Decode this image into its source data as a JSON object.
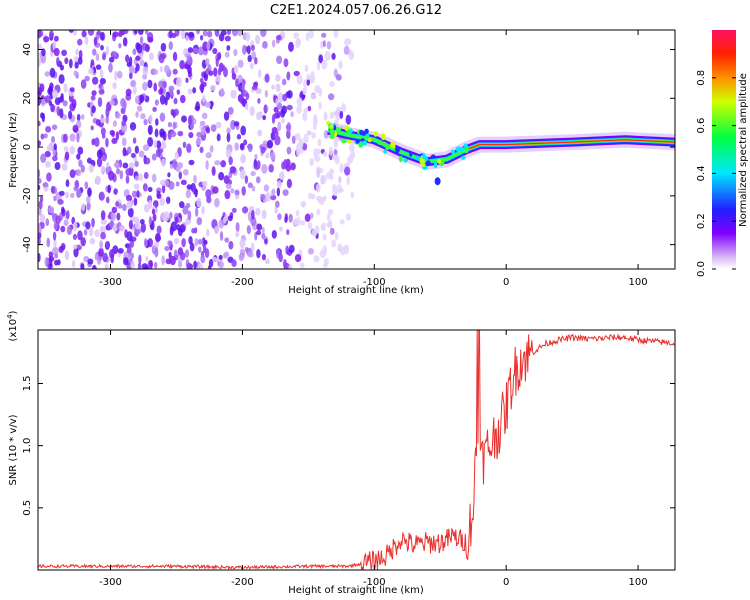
{
  "figure_title": "C2E1.2024.057.06.26.G12",
  "chart_data": [
    {
      "type": "heatmap",
      "panel": "spectrogram",
      "title": "",
      "xlabel": "Height of straight line (km)",
      "ylabel": "Frequency (Hz)",
      "xlim": [
        -355,
        128
      ],
      "ylim": [
        -50,
        48
      ],
      "x_ticks": [
        -300,
        -200,
        -100,
        0,
        100
      ],
      "y_ticks": [
        -40,
        -20,
        0,
        20,
        40
      ],
      "colorbar": {
        "label": "Normalized spectral amplitude",
        "range": [
          0.0,
          1.0
        ],
        "ticks": [
          0.0,
          0.2,
          0.4,
          0.6,
          0.8
        ],
        "tick_labels": [
          "0.0",
          "0.2",
          "0.4",
          "0.6",
          "0.8"
        ],
        "colormap": "rainbow-white"
      },
      "features": {
        "noise_region_x": [
          -355,
          -125
        ],
        "noise_amplitude": 0.15,
        "signal_trace": [
          {
            "x": -135,
            "y": 7
          },
          {
            "x": -120,
            "y": 5
          },
          {
            "x": -100,
            "y": 3
          },
          {
            "x": -80,
            "y": -2
          },
          {
            "x": -60,
            "y": -6
          },
          {
            "x": -45,
            "y": -5
          },
          {
            "x": -30,
            "y": -1
          },
          {
            "x": -20,
            "y": 1
          },
          {
            "x": 0,
            "y": 1
          },
          {
            "x": 50,
            "y": 2
          },
          {
            "x": 90,
            "y": 3
          },
          {
            "x": 128,
            "y": 2
          }
        ],
        "signal_amplitude_max": 0.95
      }
    },
    {
      "type": "line",
      "panel": "snr",
      "title": "",
      "xlabel": "Height of straight line (km)",
      "ylabel": "SNR (10 * v/v)",
      "y_scale_label": "(x10",
      "y_scale_exponent": "4",
      "y_scale_close": ")",
      "xlim": [
        -355,
        128
      ],
      "ylim": [
        0,
        1.93
      ],
      "x_ticks": [
        -300,
        -200,
        -100,
        0,
        100
      ],
      "y_ticks": [
        0.5,
        1.0,
        1.5
      ],
      "y_tick_labels": [
        "0.5",
        "1.0",
        "1.5"
      ],
      "series": [
        {
          "color": "#e8302c",
          "x": [
            -355,
            -300,
            -250,
            -200,
            -150,
            -120,
            -100,
            -90,
            -80,
            -70,
            -60,
            -50,
            -40,
            -30,
            -25,
            -22,
            -20,
            -15,
            -10,
            -5,
            0,
            5,
            10,
            20,
            30,
            40,
            50,
            60,
            70,
            80,
            90,
            100,
            110,
            120,
            128
          ],
          "y": [
            0.03,
            0.03,
            0.03,
            0.02,
            0.03,
            0.03,
            0.07,
            0.12,
            0.25,
            0.2,
            0.22,
            0.22,
            0.27,
            0.22,
            0.5,
            1.1,
            0.85,
            0.95,
            1.05,
            1.15,
            1.3,
            1.55,
            1.68,
            1.75,
            1.82,
            1.85,
            1.87,
            1.86,
            1.86,
            1.87,
            1.87,
            1.85,
            1.84,
            1.83,
            1.82
          ]
        }
      ]
    }
  ]
}
